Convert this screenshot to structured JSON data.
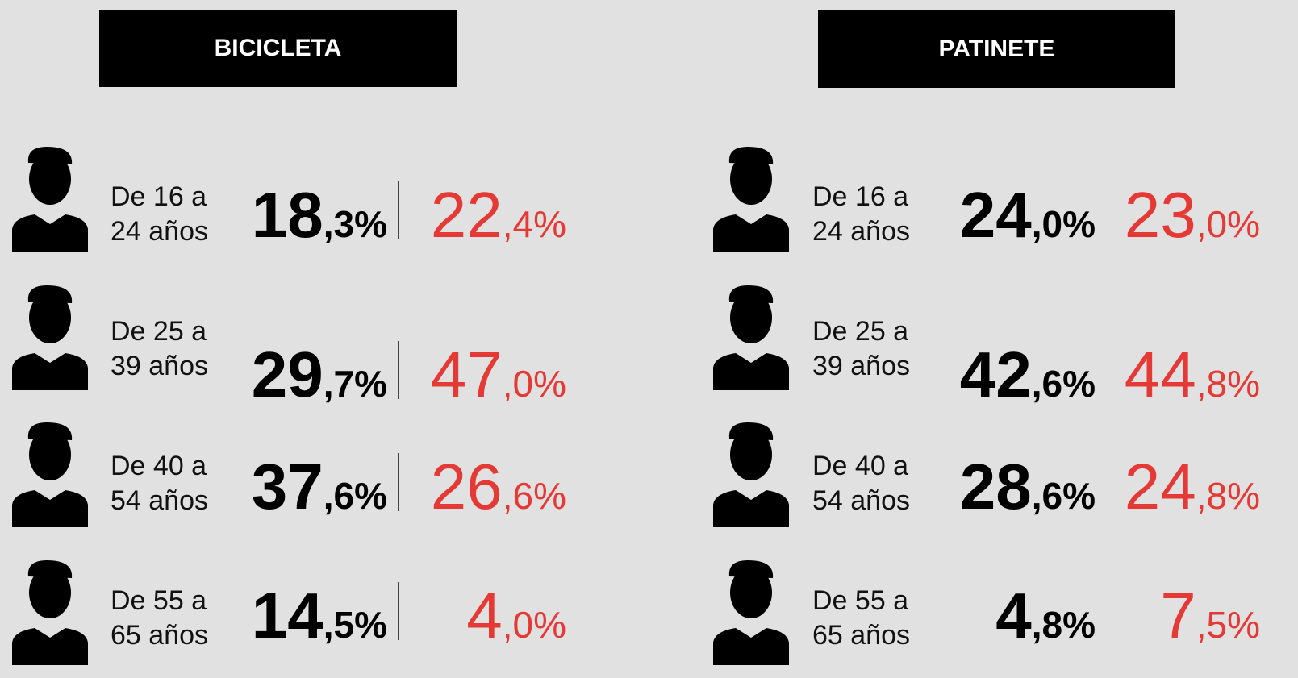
{
  "panels": [
    {
      "title": "BICICLETA",
      "rows": [
        {
          "age": [
            "De 16 a",
            "24 años"
          ],
          "black": {
            "int": "18",
            "dec": ",3%"
          },
          "red": {
            "int": "22",
            "dec": ",4%"
          }
        },
        {
          "age": [
            "De 25 a",
            "39 años"
          ],
          "black": {
            "int": "29",
            "dec": ",7%"
          },
          "red": {
            "int": "47",
            "dec": ",0%"
          }
        },
        {
          "age": [
            "De 40 a",
            "54 años"
          ],
          "black": {
            "int": "37",
            "dec": ",6%"
          },
          "red": {
            "int": "26",
            "dec": ",6%"
          }
        },
        {
          "age": [
            "De 55 a",
            "65 años"
          ],
          "black": {
            "int": "14",
            "dec": ",5%"
          },
          "red": {
            "int": "4",
            "dec": ",0%"
          }
        }
      ]
    },
    {
      "title": "PATINETE",
      "rows": [
        {
          "age": [
            "De 16 a",
            "24 años"
          ],
          "black": {
            "int": "24",
            "dec": ",0%"
          },
          "red": {
            "int": "23",
            "dec": ",0%"
          }
        },
        {
          "age": [
            "De 25 a",
            "39 años"
          ],
          "black": {
            "int": "42",
            "dec": ",6%"
          },
          "red": {
            "int": "44",
            "dec": ",8%"
          }
        },
        {
          "age": [
            "De 40 a",
            "54 años"
          ],
          "black": {
            "int": "28",
            "dec": ",6%"
          },
          "red": {
            "int": "24",
            "dec": ",8%"
          }
        },
        {
          "age": [
            "De 55 a",
            "65 años"
          ],
          "black": {
            "int": "4",
            "dec": ",8%"
          },
          "red": {
            "int": "7",
            "dec": ",5%"
          }
        }
      ]
    }
  ]
}
